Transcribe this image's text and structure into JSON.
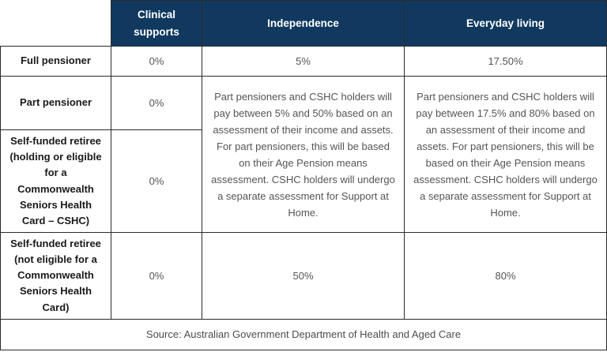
{
  "chart_data": {
    "type": "table",
    "columns": [
      "Clinical supports",
      "Independence",
      "Everyday living"
    ],
    "row_labels": [
      "Full pensioner",
      "Part pensioner",
      "Self-funded retiree (holding or eligible for a Commonwealth Seniors Health Card – CSHC)",
      "Self-funded retiree (not eligible for a Commonwealth Seniors Health Card)"
    ],
    "cells": {
      "full_pensioner": {
        "clinical": "0%",
        "independence": "5%",
        "everyday": "17.50%"
      },
      "part_pensioner": {
        "clinical": "0%"
      },
      "self_funded_cshc": {
        "clinical": "0%"
      },
      "merged_part_and_cshc": {
        "independence": "Part pensioners and CSHC holders will pay between 5% and 50% based on an assessment of their income and assets. For part pensioners, this will be based on their Age Pension means assessment. CSHC holders will undergo a separate assessment for Support at Home.",
        "everyday": "Part pensioners and CSHC holders will pay between 17.5% and 80% based on an assessment of their income and assets. For part pensioners, this will be based on their Age Pension means assessment. CSHC holders will undergo a separate assessment for Support at Home."
      },
      "self_funded_no_card": {
        "clinical": "0%",
        "independence": "50%",
        "everyday": "80%"
      }
    },
    "source": "Source: Australian Government Department of Health and Aged Care",
    "layout": {
      "grid": true,
      "merged_cells": "Independence and Everyday living columns merged across Part pensioner and Self-funded retiree (CSHC) rows"
    }
  },
  "colors": {
    "header_bg": "#11395f",
    "header_text": "#ffffff",
    "border": "#2b2b2b",
    "label_text": "#1a1a1a",
    "body_text": "#555555"
  }
}
